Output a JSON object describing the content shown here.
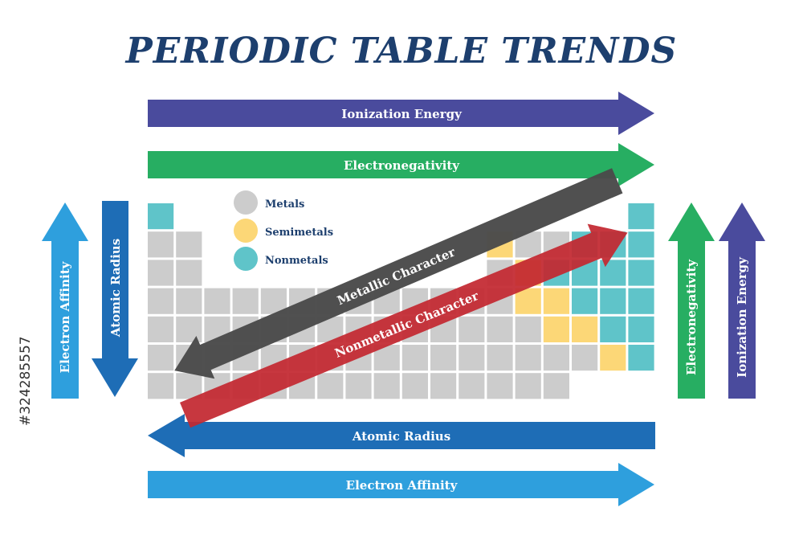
{
  "title": "PERIODIC TABLE TRENDS",
  "side_id": "#324285557",
  "colors": {
    "metal": "#cccccc",
    "semimetal": "#fcd777",
    "nonmetal": "#5fc4c9",
    "ionization": "#4a4b9d",
    "electronegativity": "#27ae62",
    "atomic_radius": "#1e6db6",
    "electron_affinity": "#2e9fdd",
    "metallic": "#4a4a4a",
    "nonmetallic": "#c32830"
  },
  "arrows": {
    "top_ionization": "Ionization Energy",
    "top_electronegativity": "Electronegativity",
    "bottom_atomic_radius": "Atomic Radius",
    "bottom_electron_affinity": "Electron Affinity",
    "left_electron_affinity": "Electron Affinity",
    "left_atomic_radius": "Atomic Radius",
    "right_electronegativity": "Electronegativity",
    "right_ionization": "Ionization Energy",
    "metallic_character": "Metallic Character",
    "nonmetallic_character": "Nonmetallic Character"
  },
  "legend": [
    {
      "label": "Metals",
      "type": "metal"
    },
    {
      "label": "Semimetals",
      "type": "semimetal"
    },
    {
      "label": "Nonmetals",
      "type": "nonmetal"
    }
  ]
}
